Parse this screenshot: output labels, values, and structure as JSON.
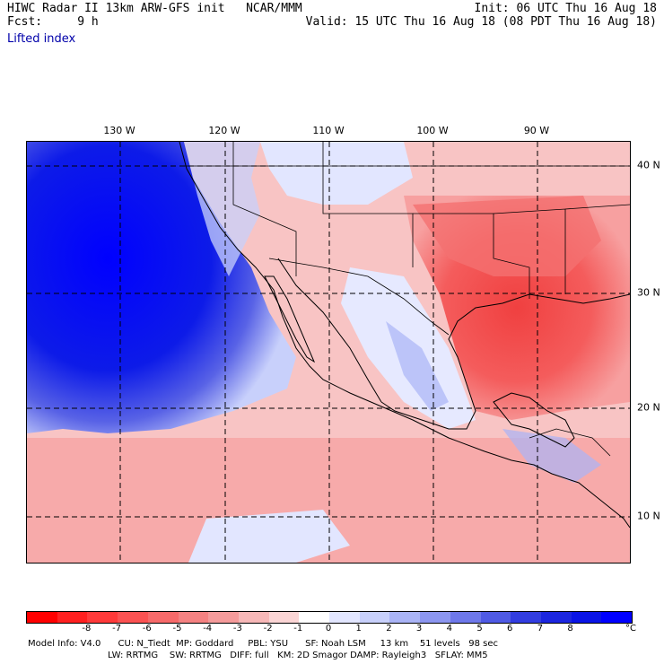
{
  "header": {
    "left_line1": "HIWC Radar II 13km ARW-GFS init   NCAR/MMM",
    "left_line2": "Fcst:     9 h",
    "right_line1": "Init: 06 UTC Thu 16 Aug 18",
    "right_line2": "Valid: 15 UTC Thu 16 Aug 18 (08 PDT Thu 16 Aug 18)",
    "subtitle": "Lifted index"
  },
  "map": {
    "field": "Lifted index",
    "lon_labels": [
      "130 W",
      "120 W",
      "110 W",
      "100 W",
      "90 W"
    ],
    "lat_labels": [
      "40 N",
      "30 N",
      "20 N",
      "10 N"
    ],
    "regions": {
      "pacific_west": "strongly stable (deep blue, +6 to +8)",
      "southern_us_gulf": "unstable (red, -4 to -6)",
      "mexico_plateau": "near-neutral to slightly stable (white/light blue)",
      "tropical_pacific_south": "slightly unstable (light red, -1 to -3)"
    }
  },
  "colorbar": {
    "labels": [
      "-8",
      "-7",
      "-6",
      "-5",
      "-4",
      "-3",
      "-2",
      "-1",
      "0",
      "1",
      "2",
      "3",
      "4",
      "5",
      "6",
      "7",
      "8"
    ],
    "unit": "°C",
    "colors": [
      "#ff0000",
      "#ff2020",
      "#ff3a3a",
      "#fb5252",
      "#f76a6a",
      "#f58282",
      "#f59b9b",
      "#f7b8b8",
      "#fbd5d5",
      "#ffffff",
      "#e2e6ff",
      "#c8d0fb",
      "#aab4f6",
      "#8c96f0",
      "#6e78ea",
      "#4f5ae4",
      "#323de0",
      "#1c26df",
      "#0a14e6",
      "#0000ff"
    ]
  },
  "footer": {
    "line1": "Model Info: V4.0      CU: N_Tiedt  MP: Goddard     PBL: YSU      SF: Noah LSM     13 km    51 levels   98 sec",
    "line2": "LW: RRTMG    SW: RRTMG   DIFF: full   KM: 2D Smagor DAMP: Rayleigh3   SFLAY: MM5"
  }
}
